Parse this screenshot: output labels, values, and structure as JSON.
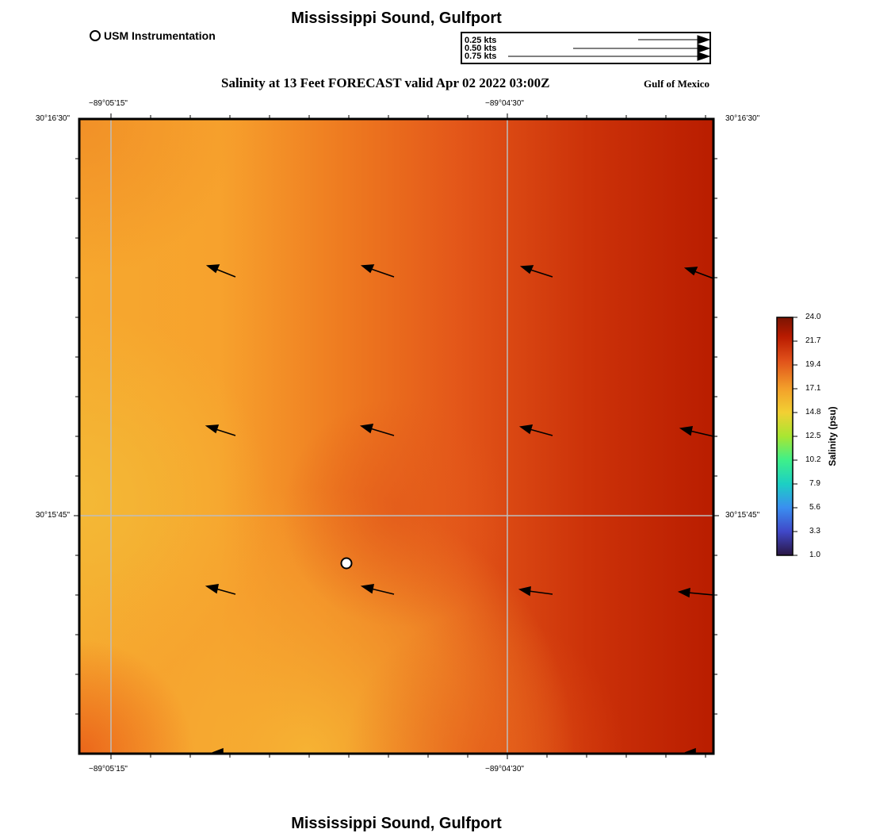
{
  "header": {
    "title": "Mississippi Sound, Gulfport",
    "subtitle": "Salinity at 13 Feet FORECAST valid Apr 02 2022 03:00Z",
    "region": "Gulf of Mexico"
  },
  "legend": {
    "station_label": "USM Instrumentation"
  },
  "vector_scale": {
    "items": [
      {
        "label": "0.25 kts",
        "speed": 0.25
      },
      {
        "label": "0.50 kts",
        "speed": 0.5
      },
      {
        "label": "0.75 kts",
        "speed": 0.75
      }
    ]
  },
  "axes": {
    "lon_ticks": [
      "−89°05’15\"",
      "−89°04’30\""
    ],
    "lat_ticks": [
      "30°16’30\"",
      "30°15’45\""
    ]
  },
  "colorbar": {
    "title": "Salinity (psu)",
    "ticks": [
      "24.0",
      "21.7",
      "19.4",
      "17.1",
      "14.8",
      "12.5",
      "10.2",
      "7.9",
      "5.6",
      "3.3",
      "1.0"
    ]
  },
  "footer": {
    "title": "Mississippi Sound, Gulfport"
  },
  "colors": {
    "frame": "#000000",
    "grid": "#bdbdbd",
    "salinity_high": "#b81a00",
    "salinity_mid": "#e8551a",
    "salinity_low": "#f4b334"
  }
}
